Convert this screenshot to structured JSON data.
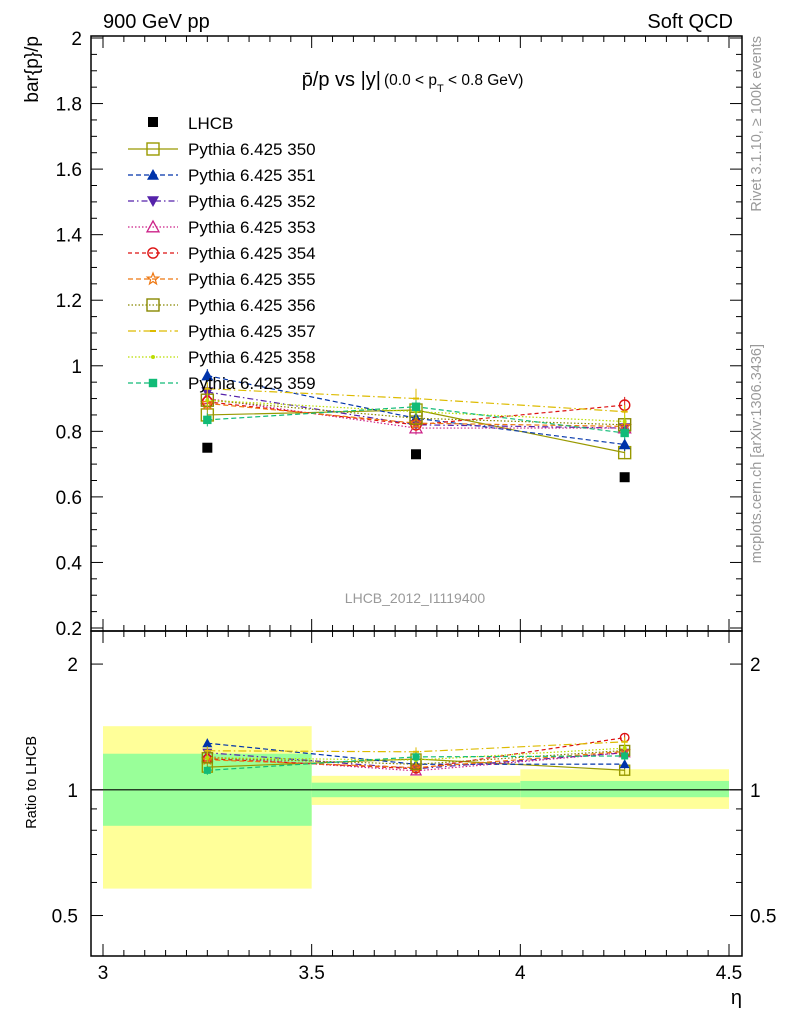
{
  "header": {
    "left": "900 GeV pp",
    "right": "Soft QCD"
  },
  "side_labels": {
    "rivet": "Rivet 3.1.10, ≥ 100k events",
    "mcplots": "mcplots.cern.ch [arXiv:1306.3436]"
  },
  "chart_data": [
    {
      "type": "line",
      "title_main": "p̄/p vs |y|",
      "title_cut": "(0.0 < p",
      "title_cut_sub": "T",
      "title_cut_end": " < 0.8 GeV)",
      "ylabel": "bar{p}/p",
      "xlabel": "η",
      "watermark": "LHCB_2012_I1119400",
      "xlim": [
        3,
        4.5
      ],
      "ylim": [
        0.2,
        2
      ],
      "xticks": [
        "3",
        "3.5",
        "4",
        "4.5"
      ],
      "yticks": [
        "0.2",
        "0.4",
        "0.6",
        "0.8",
        "1",
        "1.2",
        "1.4",
        "1.6",
        "1.8",
        "2"
      ],
      "x": [
        3.25,
        3.75,
        4.25
      ],
      "data": {
        "name": "LHCB",
        "color": "#000000",
        "marker": "square",
        "values": [
          0.75,
          0.73,
          0.66
        ]
      },
      "series": [
        {
          "name": "Pythia 6.425 350",
          "color": "#999900",
          "dash": "solid",
          "marker": "open-square",
          "values": [
            0.85,
            0.865,
            0.735
          ],
          "err": [
            0.02,
            0.02,
            0.02
          ]
        },
        {
          "name": "Pythia 6.425 351",
          "color": "#0033aa",
          "dash": "5,3",
          "marker": "triangle-up",
          "values": [
            0.97,
            0.84,
            0.76
          ],
          "err": [
            0.02,
            0.02,
            0.02
          ]
        },
        {
          "name": "Pythia 6.425 352",
          "color": "#5522aa",
          "dash": "6,3,1.5,3",
          "marker": "triangle-down",
          "values": [
            0.92,
            0.82,
            0.81
          ],
          "err": [
            0.02,
            0.02,
            0.02
          ]
        },
        {
          "name": "Pythia 6.425 353",
          "color": "#cc2288",
          "dash": "1.5,2",
          "marker": "open-triangle-up",
          "values": [
            0.9,
            0.81,
            0.81
          ],
          "err": [
            0.02,
            0.02,
            0.02
          ]
        },
        {
          "name": "Pythia 6.425 354",
          "color": "#dd1111",
          "dash": "4,3",
          "marker": "open-circle",
          "values": [
            0.89,
            0.82,
            0.88
          ],
          "err": [
            0.02,
            0.02,
            0.025
          ]
        },
        {
          "name": "Pythia 6.425 355",
          "color": "#ee7711",
          "dash": "5,3",
          "marker": "open-star",
          "values": [
            0.885,
            0.825,
            0.815
          ],
          "err": [
            0.02,
            0.02,
            0.02
          ]
        },
        {
          "name": "Pythia 6.425 356",
          "color": "#888800",
          "dash": "1.5,2",
          "marker": "open-square",
          "values": [
            0.895,
            0.84,
            0.82
          ],
          "err": [
            0.02,
            0.02,
            0.02
          ]
        },
        {
          "name": "Pythia 6.425 357",
          "color": "#ddbb00",
          "dash": "8,3,1.5,3",
          "marker": "tick",
          "values": [
            0.93,
            0.9,
            0.86
          ],
          "err": [
            0.02,
            0.03,
            0.02
          ]
        },
        {
          "name": "Pythia 6.425 358",
          "color": "#bbdd00",
          "dash": "1.5,2",
          "marker": "dot",
          "values": [
            0.895,
            0.86,
            0.83
          ],
          "err": [
            0.02,
            0.02,
            0.02
          ]
        },
        {
          "name": "Pythia 6.425 359",
          "color": "#11bb77",
          "dash": "5,3",
          "marker": "filled-square",
          "values": [
            0.835,
            0.875,
            0.795
          ],
          "err": [
            0.02,
            0.02,
            0.02
          ]
        }
      ],
      "legend_placement": "top-left"
    },
    {
      "type": "line",
      "ylabel": "Ratio to LHCB",
      "log_scale": true,
      "ylim": [
        0.4,
        2.4
      ],
      "yticks": [
        "0.5",
        "1",
        "2"
      ],
      "x": [
        3.25,
        3.75,
        4.25
      ],
      "bands": [
        {
          "x": [
            3.0,
            3.5
          ],
          "green": [
            0.82,
            1.22
          ],
          "yellow": [
            0.58,
            1.42
          ]
        },
        {
          "x": [
            3.5,
            4.0
          ],
          "green": [
            0.96,
            1.04
          ],
          "yellow": [
            0.92,
            1.08
          ]
        },
        {
          "x": [
            4.0,
            4.5
          ],
          "green": [
            0.96,
            1.05
          ],
          "yellow": [
            0.9,
            1.12
          ]
        }
      ],
      "series_ratios": [
        [
          1.133,
          1.185,
          1.114
        ],
        [
          1.293,
          1.151,
          1.152
        ],
        [
          1.227,
          1.123,
          1.227
        ],
        [
          1.2,
          1.11,
          1.227
        ],
        [
          1.187,
          1.123,
          1.333
        ],
        [
          1.18,
          1.13,
          1.235
        ],
        [
          1.193,
          1.151,
          1.242
        ],
        [
          1.24,
          1.233,
          1.303
        ],
        [
          1.193,
          1.178,
          1.258
        ],
        [
          1.113,
          1.199,
          1.205
        ]
      ],
      "color_green": "#99ff99",
      "color_yellow": "#ffff99"
    }
  ]
}
